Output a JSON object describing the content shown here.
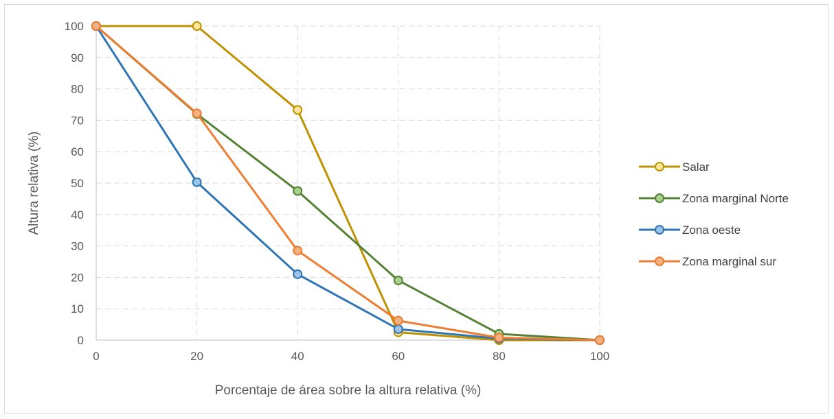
{
  "chart_data": {
    "type": "line",
    "title": "",
    "xlabel": "Porcentaje de área sobre la altura relativa (%)",
    "ylabel": "Altura relativa (%)",
    "x": [
      0,
      20,
      40,
      60,
      80,
      100
    ],
    "xlim": [
      0,
      100
    ],
    "ylim": [
      0,
      100
    ],
    "xticks": [
      "0",
      "20",
      "40",
      "60",
      "80",
      "100"
    ],
    "yticks": [
      "0",
      "10",
      "20",
      "30",
      "40",
      "50",
      "60",
      "70",
      "80",
      "90",
      "100"
    ],
    "grid": "dashed",
    "legend_position": "right",
    "series": [
      {
        "name": "Salar",
        "color": "#BF9000",
        "marker_fill": "#FFE699",
        "values": [
          100,
          100,
          73.3,
          2.5,
          0,
          0
        ]
      },
      {
        "name": "Zona marginal Norte",
        "color": "#548235",
        "marker_fill": "#A9D18E",
        "values": [
          100,
          72,
          47.5,
          19,
          2,
          0
        ]
      },
      {
        "name": "Zona oeste",
        "color": "#2E75B6",
        "marker_fill": "#9DC3E6",
        "values": [
          100,
          50.3,
          21,
          3.5,
          0.5,
          0
        ]
      },
      {
        "name": "Zona marginal sur",
        "color": "#ED7D31",
        "marker_fill": "#F4B183",
        "values": [
          100,
          72.2,
          28.5,
          6.2,
          0.8,
          0
        ]
      }
    ]
  }
}
